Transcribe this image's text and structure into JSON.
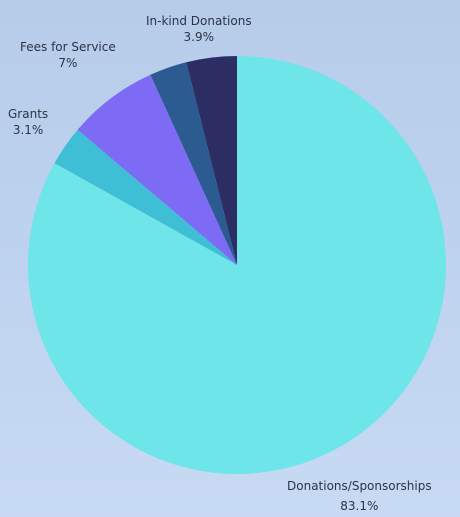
{
  "chart_data": {
    "type": "pie",
    "title": "",
    "start_angle_deg": 0,
    "direction": "clockwise",
    "slices": [
      {
        "label": "Donations/Sponsorships",
        "value": 83.1,
        "value_label": "83.1%",
        "color": "#6ee5e8"
      },
      {
        "label": "Grants",
        "value": 3.1,
        "value_label": "3.1%",
        "color": "#3ebfd6"
      },
      {
        "label": "Fees for Service",
        "value": 7.0,
        "value_label": "7%",
        "color": "#7d6bf5"
      },
      {
        "label": "",
        "value": 2.9,
        "value_label": "",
        "color": "#2c5b92"
      },
      {
        "label": "In-kind Donations",
        "value": 3.9,
        "value_label": "3.9%",
        "color": "#2b2d63"
      }
    ]
  }
}
